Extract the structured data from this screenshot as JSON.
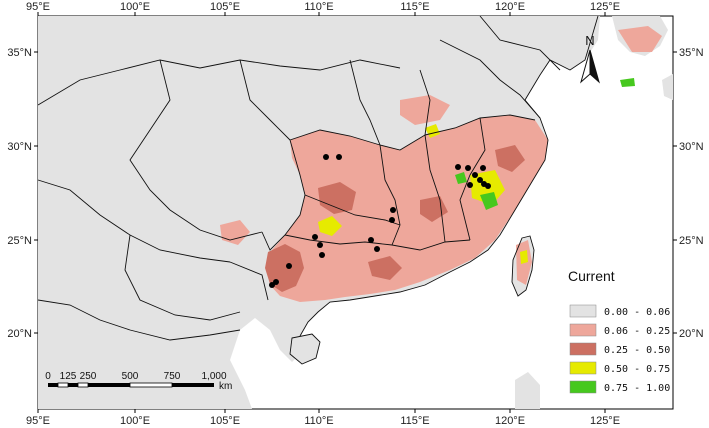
{
  "map": {
    "lon_ticks": [
      "95°E",
      "100°E",
      "105°E",
      "110°E",
      "115°E",
      "120°E",
      "125°E"
    ],
    "lat_ticks": [
      "35°N",
      "30°N",
      "25°N",
      "20°N"
    ],
    "north_label": "N",
    "legend": {
      "title": "Current",
      "classes": [
        {
          "label": "0.00 - 0.06",
          "color": "#e3e3e3"
        },
        {
          "label": "0.06 - 0.25",
          "color": "#eea79b"
        },
        {
          "label": "0.25 - 0.50",
          "color": "#cc7062"
        },
        {
          "label": "0.50 - 0.75",
          "color": "#e6ea00"
        },
        {
          "label": "0.75 - 1.00",
          "color": "#46c81e"
        }
      ]
    },
    "scale_bar": {
      "ticks": [
        "0",
        "125",
        "250",
        "500",
        "750",
        "1,000"
      ],
      "unit": "km"
    },
    "colors": {
      "land": "#e3e3e3",
      "sea": "#ffffff",
      "border": "#111111",
      "points": "#000000"
    }
  }
}
